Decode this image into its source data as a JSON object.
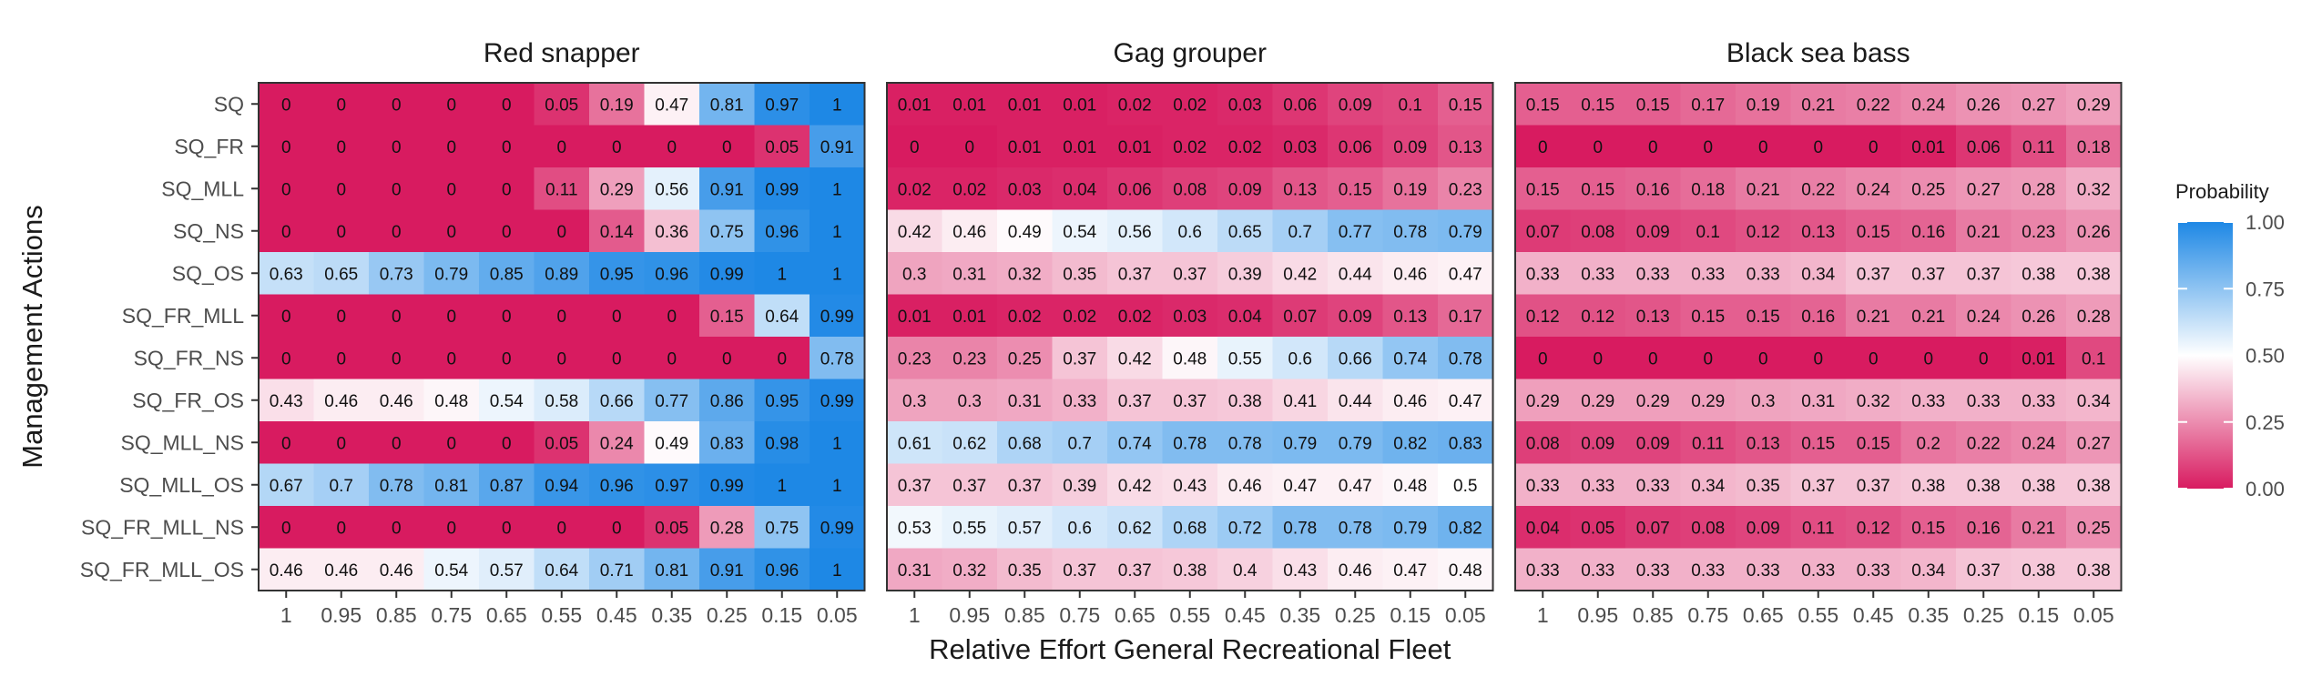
{
  "chart_data": {
    "type": "heatmap",
    "xlabel": "Relative Effort General Recreational Fleet",
    "ylabel": "Management Actions",
    "x": [
      "1",
      "0.95",
      "0.85",
      "0.75",
      "0.65",
      "0.55",
      "0.45",
      "0.35",
      "0.25",
      "0.15",
      "0.05"
    ],
    "rows": [
      "SQ",
      "SQ_FR",
      "SQ_MLL",
      "SQ_NS",
      "SQ_OS",
      "SQ_FR_MLL",
      "SQ_FR_NS",
      "SQ_FR_OS",
      "SQ_MLL_NS",
      "SQ_MLL_OS",
      "SQ_FR_MLL_NS",
      "SQ_FR_MLL_OS"
    ],
    "legend": {
      "title": "Probability",
      "ticks": [
        "1.00",
        "0.75",
        "0.50",
        "0.25",
        "0.00"
      ],
      "colors": {
        "low": "#D81B60",
        "mid": "#FFFFFF",
        "high": "#1E88E5"
      }
    },
    "panels": [
      {
        "title": "Red snapper",
        "values": [
          [
            "0",
            "0",
            "0",
            "0",
            "0",
            "0.05",
            "0.19",
            "0.47",
            "0.81",
            "0.97",
            "1"
          ],
          [
            "0",
            "0",
            "0",
            "0",
            "0",
            "0",
            "0",
            "0",
            "0",
            "0.05",
            "0.91"
          ],
          [
            "0",
            "0",
            "0",
            "0",
            "0",
            "0.11",
            "0.29",
            "0.56",
            "0.91",
            "0.99",
            "1"
          ],
          [
            "0",
            "0",
            "0",
            "0",
            "0",
            "0",
            "0.14",
            "0.36",
            "0.75",
            "0.96",
            "1"
          ],
          [
            "0.63",
            "0.65",
            "0.73",
            "0.79",
            "0.85",
            "0.89",
            "0.95",
            "0.96",
            "0.99",
            "1",
            "1"
          ],
          [
            "0",
            "0",
            "0",
            "0",
            "0",
            "0",
            "0",
            "0",
            "0.15",
            "0.64",
            "0.99"
          ],
          [
            "0",
            "0",
            "0",
            "0",
            "0",
            "0",
            "0",
            "0",
            "0",
            "0",
            "0.78"
          ],
          [
            "0.43",
            "0.46",
            "0.46",
            "0.48",
            "0.54",
            "0.58",
            "0.66",
            "0.77",
            "0.86",
            "0.95",
            "0.99"
          ],
          [
            "0",
            "0",
            "0",
            "0",
            "0",
            "0.05",
            "0.24",
            "0.49",
            "0.83",
            "0.98",
            "1"
          ],
          [
            "0.67",
            "0.7",
            "0.78",
            "0.81",
            "0.87",
            "0.94",
            "0.96",
            "0.97",
            "0.99",
            "1",
            "1"
          ],
          [
            "0",
            "0",
            "0",
            "0",
            "0",
            "0",
            "0",
            "0.05",
            "0.28",
            "0.75",
            "0.99"
          ],
          [
            "0.46",
            "0.46",
            "0.46",
            "0.54",
            "0.57",
            "0.64",
            "0.71",
            "0.81",
            "0.91",
            "0.96",
            "1"
          ]
        ]
      },
      {
        "title": "Gag grouper",
        "values": [
          [
            "0.01",
            "0.01",
            "0.01",
            "0.01",
            "0.02",
            "0.02",
            "0.03",
            "0.06",
            "0.09",
            "0.1",
            "0.15"
          ],
          [
            "0",
            "0",
            "0.01",
            "0.01",
            "0.01",
            "0.02",
            "0.02",
            "0.03",
            "0.06",
            "0.09",
            "0.13"
          ],
          [
            "0.02",
            "0.02",
            "0.03",
            "0.04",
            "0.06",
            "0.08",
            "0.09",
            "0.13",
            "0.15",
            "0.19",
            "0.23"
          ],
          [
            "0.42",
            "0.46",
            "0.49",
            "0.54",
            "0.56",
            "0.6",
            "0.65",
            "0.7",
            "0.77",
            "0.78",
            "0.79"
          ],
          [
            "0.3",
            "0.31",
            "0.32",
            "0.35",
            "0.37",
            "0.37",
            "0.39",
            "0.42",
            "0.44",
            "0.46",
            "0.47"
          ],
          [
            "0.01",
            "0.01",
            "0.02",
            "0.02",
            "0.02",
            "0.03",
            "0.04",
            "0.07",
            "0.09",
            "0.13",
            "0.17"
          ],
          [
            "0.23",
            "0.23",
            "0.25",
            "0.37",
            "0.42",
            "0.48",
            "0.55",
            "0.6",
            "0.66",
            "0.74",
            "0.78"
          ],
          [
            "0.3",
            "0.3",
            "0.31",
            "0.33",
            "0.37",
            "0.37",
            "0.38",
            "0.41",
            "0.44",
            "0.46",
            "0.47"
          ],
          [
            "0.61",
            "0.62",
            "0.68",
            "0.7",
            "0.74",
            "0.78",
            "0.78",
            "0.79",
            "0.79",
            "0.82",
            "0.83"
          ],
          [
            "0.37",
            "0.37",
            "0.37",
            "0.39",
            "0.42",
            "0.43",
            "0.46",
            "0.47",
            "0.47",
            "0.48",
            "0.5"
          ],
          [
            "0.53",
            "0.55",
            "0.57",
            "0.6",
            "0.62",
            "0.68",
            "0.72",
            "0.78",
            "0.78",
            "0.79",
            "0.82"
          ],
          [
            "0.31",
            "0.32",
            "0.35",
            "0.37",
            "0.37",
            "0.38",
            "0.4",
            "0.43",
            "0.46",
            "0.47",
            "0.48"
          ]
        ]
      },
      {
        "title": "Black sea bass",
        "values": [
          [
            "0.15",
            "0.15",
            "0.15",
            "0.17",
            "0.19",
            "0.21",
            "0.22",
            "0.24",
            "0.26",
            "0.27",
            "0.29"
          ],
          [
            "0",
            "0",
            "0",
            "0",
            "0",
            "0",
            "0",
            "0.01",
            "0.06",
            "0.11",
            "0.18"
          ],
          [
            "0.15",
            "0.15",
            "0.16",
            "0.18",
            "0.21",
            "0.22",
            "0.24",
            "0.25",
            "0.27",
            "0.28",
            "0.32"
          ],
          [
            "0.07",
            "0.08",
            "0.09",
            "0.1",
            "0.12",
            "0.13",
            "0.15",
            "0.16",
            "0.21",
            "0.23",
            "0.26"
          ],
          [
            "0.33",
            "0.33",
            "0.33",
            "0.33",
            "0.33",
            "0.34",
            "0.37",
            "0.37",
            "0.37",
            "0.38",
            "0.38"
          ],
          [
            "0.12",
            "0.12",
            "0.13",
            "0.15",
            "0.15",
            "0.16",
            "0.21",
            "0.21",
            "0.24",
            "0.26",
            "0.28"
          ],
          [
            "0",
            "0",
            "0",
            "0",
            "0",
            "0",
            "0",
            "0",
            "0",
            "0.01",
            "0.1"
          ],
          [
            "0.29",
            "0.29",
            "0.29",
            "0.29",
            "0.3",
            "0.31",
            "0.32",
            "0.33",
            "0.33",
            "0.33",
            "0.34"
          ],
          [
            "0.08",
            "0.09",
            "0.09",
            "0.11",
            "0.13",
            "0.15",
            "0.15",
            "0.2",
            "0.22",
            "0.24",
            "0.27"
          ],
          [
            "0.33",
            "0.33",
            "0.33",
            "0.34",
            "0.35",
            "0.37",
            "0.37",
            "0.38",
            "0.38",
            "0.38",
            "0.38"
          ],
          [
            "0.04",
            "0.05",
            "0.07",
            "0.08",
            "0.09",
            "0.11",
            "0.12",
            "0.15",
            "0.16",
            "0.21",
            "0.25"
          ],
          [
            "0.33",
            "0.33",
            "0.33",
            "0.33",
            "0.33",
            "0.33",
            "0.33",
            "0.34",
            "0.37",
            "0.38",
            "0.38"
          ]
        ]
      }
    ]
  }
}
